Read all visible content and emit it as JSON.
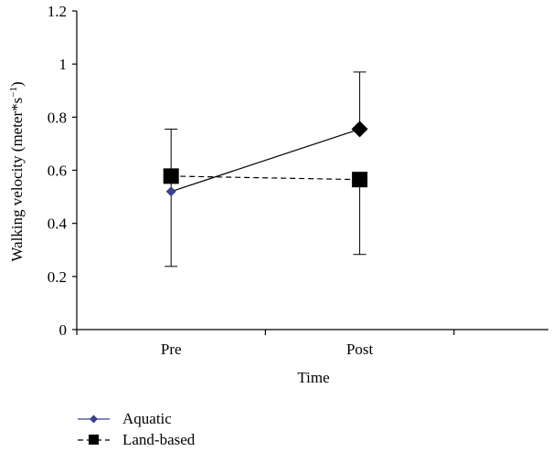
{
  "chart_data": {
    "type": "line",
    "title": "",
    "xlabel": "Time",
    "ylabel": "Walking velocity (meter*s",
    "ylabel_superscript": "−1",
    "ylabel_close": ")",
    "categories": [
      "Pre",
      "Post"
    ],
    "ylim": [
      0,
      1.2
    ],
    "yticks": [
      0,
      0.2,
      0.4,
      0.6,
      0.8,
      1,
      1.2
    ],
    "ytick_labels": [
      "0",
      "0.2",
      "0.4",
      "0.6",
      "0.8",
      "1",
      "1.2"
    ],
    "grid": false,
    "legend_position": "bottom-left",
    "series": [
      {
        "name": "Aquatic",
        "values": [
          0.52,
          0.755
        ],
        "marker": "diamond",
        "line_style": "solid",
        "colors": [
          "#3b3f8f",
          "#000000"
        ],
        "error_upper": [
          null,
          0.97
        ],
        "error_lower": [
          null,
          null
        ]
      },
      {
        "name": "Land-based",
        "values": [
          0.578,
          0.565
        ],
        "marker": "square",
        "line_style": "dashed",
        "colors": [
          "#000000",
          "#000000"
        ],
        "error_upper": [
          0.755,
          null
        ],
        "error_lower": [
          0.238,
          0.283
        ]
      }
    ]
  }
}
